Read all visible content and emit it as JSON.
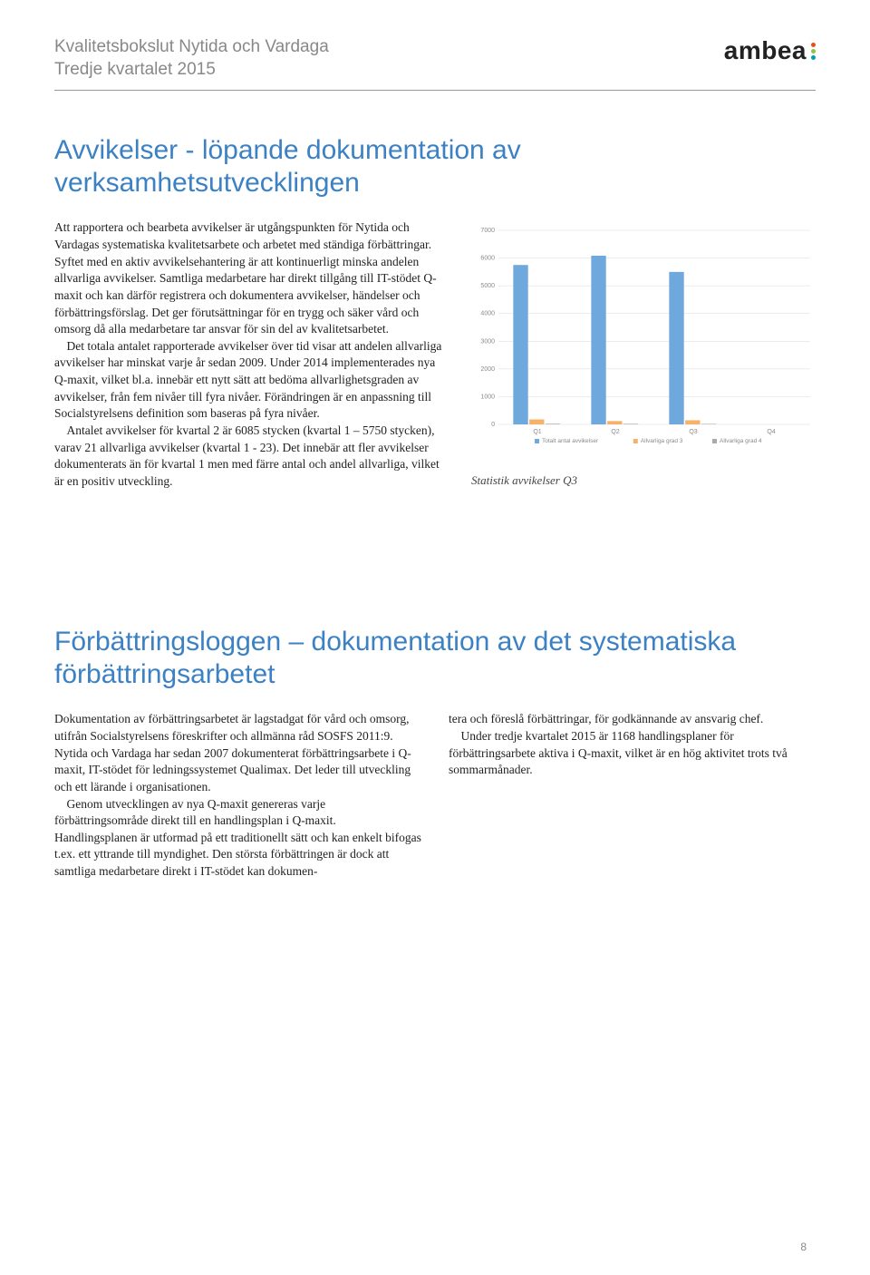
{
  "header": {
    "line1": "Kvalitetsbokslut Nytida och Vardaga",
    "line2": "Tredje kvartalet 2015",
    "logo_text": "ambea",
    "logo_dot_colors": [
      "#e84e1b",
      "#8cc63f",
      "#00a0b0"
    ]
  },
  "section1": {
    "title": "Avvikelser - löpande dokumentation av verksamhetsutvecklingen",
    "p1": "Att rapportera och bearbeta avvikelser är utgångs­punkten för Nytida och Vardagas systematiska kvalitetsarbete och arbetet med ständiga förbättring­ar. Syftet med en aktiv avvikelsehantering är att kontinuerligt minska andelen allvarliga avvikelser. Samtliga medarbetare har direkt tillgång till IT-stödet Q-maxit och kan därför registrera och dokumentera avvikelser, händelser och förbättringsförslag. Det ger förutsättningar för en trygg och säker vård och omsorg då alla medarbetare tar ansvar för sin del av kvalitets­arbetet.",
    "p2": "Det totala antalet rapporterade avvikelser över tid visar att andelen allvarliga avvikelser har minskat varje år sedan 2009. Under 2014 implementerades nya Q-maxit, vilket bl.a. innebär ett nytt sätt att bedöma allvarlighetsgraden av avvikelser, från fem nivåer till fyra nivåer. Förändringen är en anpassning till Socialstyrelsens definition som baseras på fyra nivåer.",
    "p3": "Antalet avvikelser för kvartal 2 är 6085 stycken (kvartal 1 – 5750 stycken), varav 21 allvarliga avvikel­ser (kvartal 1 - 23). Det innebär att fler avvikelser dokumenterats än för kvartal 1 men med färre antal och andel allvarliga, vilket är en positiv utveckling.",
    "chart_caption": "Statistik avvikelser Q3"
  },
  "chart": {
    "type": "bar",
    "ylim": [
      0,
      7000
    ],
    "yticks": [
      0,
      1000,
      2000,
      3000,
      4000,
      5000,
      6000,
      7000
    ],
    "x_categories": [
      "Q1",
      "Q2",
      "Q3",
      "Q4"
    ],
    "series": [
      {
        "name": "Totalt antal avvikelser",
        "color": "#6fa8dc",
        "values": [
          5750,
          6085,
          5500,
          0
        ]
      },
      {
        "name": "Allvarliga grad 3",
        "color": "#f6b26b",
        "values": [
          180,
          120,
          150,
          0
        ]
      },
      {
        "name": "Allvarliga grad 4",
        "color": "#aaaaaa",
        "values": [
          23,
          21,
          18,
          0
        ]
      }
    ],
    "background_color": "#ffffff",
    "grid_color": "#d9d9d9",
    "tick_fontsize": 7,
    "tick_color": "#8a8a8a",
    "legend_fontsize": 6.5,
    "legend_color": "#8a8a8a"
  },
  "section2": {
    "title": "Förbättringsloggen – dokumentation av det systematiska förbättringsarbetet",
    "left_p1": "Dokumentation av förbättringsarbetet är lagstadgat för vård och omsorg, utifrån Socialstyrelsens föreskrif­ter och allmänna råd SOSFS 2011:9. Nytida och Vardaga har sedan 2007 dokumenterat förbättringsar­bete i Q-maxit, IT-stödet för ledningssystemet Quali­max. Det leder till utveckling och ett lärande i organi­sationen.",
    "left_p2": "Genom utvecklingen av nya Q-maxit genereras varje förbättringsområde direkt till en handlingsplan i Q-maxit. Handlingsplanen är utformad på ett traditio­nellt sätt och kan enkelt bifogas t.ex. ett yttrande till myndighet. Den största förbättringen är dock att samtliga medarbetare direkt i IT-stödet kan dokumen-",
    "right_p1": "tera och föreslå förbättringar, för godkännande av ansvarig chef.",
    "right_p2": "Under tredje kvartalet 2015 är 1168 handlingspla­ner för förbättringsarbete aktiva i Q-maxit, vilket är en hög aktivitet trots två sommarmånader."
  },
  "page_number": "8"
}
